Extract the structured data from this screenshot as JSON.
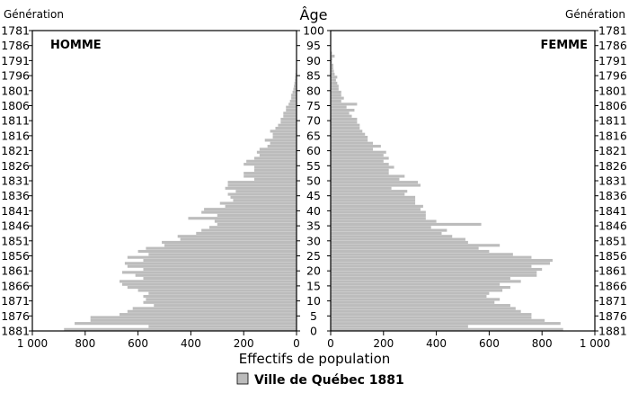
{
  "chart_data": {
    "type": "bar",
    "orientation": "horizontal-pyramid",
    "title": "Ville de Québec  1881",
    "xlabel": "Effectifs de population",
    "center_label": "Âge",
    "left_axis_label": "Génération",
    "right_axis_label": "Génération",
    "panels": {
      "left": "HOMME",
      "right": "FEMME"
    },
    "bar_color": "#bcbcbc",
    "xlim": [
      0,
      1000
    ],
    "x_ticks": [
      0,
      200,
      400,
      600,
      800,
      1000
    ],
    "x_tick_labels": [
      "0",
      "200",
      "400",
      "600",
      "800",
      "1 000"
    ],
    "age_ticks": [
      "0",
      "5",
      "10",
      "15",
      "20",
      "25",
      "30",
      "35",
      "40",
      "45",
      "50",
      "55",
      "60",
      "65",
      "70",
      "75",
      "80",
      "85",
      "90",
      "95",
      "100"
    ],
    "generation_ticks": [
      "1881",
      "1876",
      "1871",
      "1866",
      "1861",
      "1856",
      "1851",
      "1846",
      "1841",
      "1836",
      "1831",
      "1826",
      "1821",
      "1816",
      "1811",
      "1806",
      "1801",
      "1796",
      "1791",
      "1786",
      "1781"
    ],
    "ages": [
      0,
      1,
      2,
      3,
      4,
      5,
      6,
      7,
      8,
      9,
      10,
      11,
      12,
      13,
      14,
      15,
      16,
      17,
      18,
      19,
      20,
      21,
      22,
      23,
      24,
      25,
      26,
      27,
      28,
      29,
      30,
      31,
      32,
      33,
      34,
      35,
      36,
      37,
      38,
      39,
      40,
      41,
      42,
      43,
      44,
      45,
      46,
      47,
      48,
      49,
      50,
      51,
      52,
      53,
      54,
      55,
      56,
      57,
      58,
      59,
      60,
      61,
      62,
      63,
      64,
      65,
      66,
      67,
      68,
      69,
      70,
      71,
      72,
      73,
      74,
      75,
      76,
      77,
      78,
      79,
      80,
      81,
      82,
      83,
      84,
      85,
      86,
      87,
      88,
      89,
      90,
      91,
      92,
      93,
      94,
      95
    ],
    "series": [
      {
        "name": "HOMME",
        "values": [
          880,
          560,
          840,
          780,
          780,
          670,
          640,
          620,
          540,
          580,
          570,
          580,
          560,
          600,
          640,
          660,
          670,
          580,
          610,
          660,
          580,
          640,
          650,
          580,
          640,
          560,
          600,
          570,
          500,
          510,
          440,
          450,
          380,
          360,
          330,
          300,
          310,
          410,
          300,
          360,
          350,
          270,
          290,
          240,
          250,
          260,
          230,
          270,
          260,
          260,
          160,
          200,
          200,
          160,
          160,
          200,
          190,
          160,
          140,
          150,
          140,
          110,
          100,
          120,
          90,
          90,
          100,
          80,
          70,
          60,
          60,
          50,
          50,
          40,
          40,
          30,
          25,
          20,
          20,
          15,
          12,
          10,
          8,
          6,
          5,
          4,
          3,
          2,
          2,
          1,
          1,
          1,
          0,
          0,
          0,
          0
        ]
      },
      {
        "name": "FEMME",
        "values": [
          880,
          520,
          870,
          810,
          760,
          760,
          720,
          700,
          680,
          620,
          640,
          590,
          600,
          650,
          680,
          640,
          720,
          680,
          780,
          780,
          800,
          760,
          830,
          840,
          760,
          690,
          600,
          560,
          640,
          520,
          510,
          460,
          420,
          440,
          380,
          570,
          400,
          360,
          360,
          360,
          340,
          350,
          320,
          320,
          320,
          280,
          290,
          230,
          340,
          330,
          260,
          280,
          220,
          220,
          240,
          220,
          200,
          220,
          200,
          210,
          160,
          190,
          160,
          140,
          140,
          130,
          120,
          110,
          110,
          100,
          100,
          80,
          70,
          90,
          60,
          100,
          40,
          50,
          40,
          40,
          30,
          30,
          25,
          20,
          25,
          15,
          12,
          10,
          10,
          5,
          6,
          15,
          5,
          0,
          0,
          0
        ]
      }
    ]
  }
}
